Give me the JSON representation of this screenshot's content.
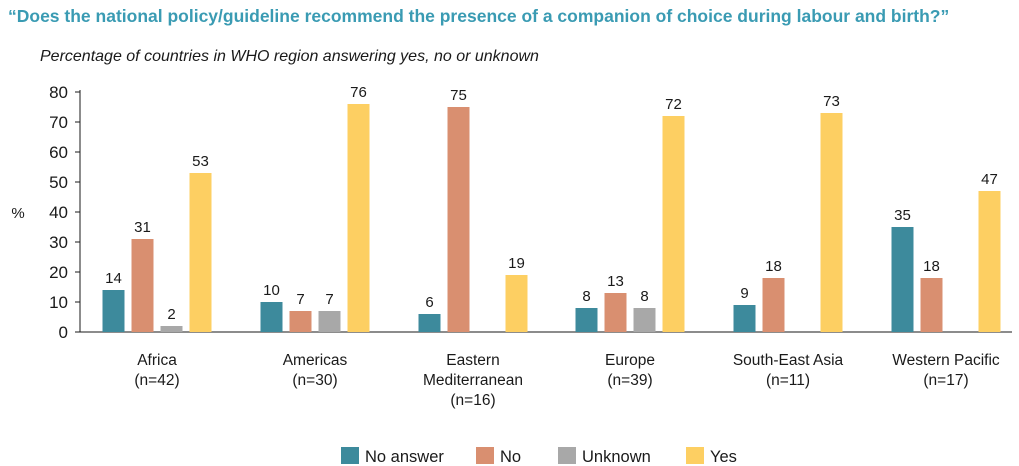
{
  "title": "“Does the national policy/guideline recommend the presence of a companion of choice during labour and birth?”",
  "subtitle": "Percentage of countries in WHO region answering yes, no or unknown",
  "chart_data": {
    "type": "bar",
    "ylabel": "%",
    "ylim": [
      0,
      80
    ],
    "yticks": [
      0,
      10,
      20,
      30,
      40,
      50,
      60,
      70,
      80
    ],
    "grid": false,
    "legend_position": "bottom",
    "categories": [
      [
        "Africa",
        "(n=42)"
      ],
      [
        "Americas",
        "(n=30)"
      ],
      [
        "Eastern",
        "Mediterranean",
        "(n=16)"
      ],
      [
        "Europe",
        "(n=39)"
      ],
      [
        "South-East Asia",
        "(n=11)"
      ],
      [
        "Western Pacific",
        "(n=17)"
      ]
    ],
    "series": [
      {
        "name": "No answer",
        "color": "#3d8a9c",
        "values": [
          14,
          10,
          6,
          8,
          9,
          35
        ]
      },
      {
        "name": "No",
        "color": "#d98f70",
        "values": [
          31,
          7,
          75,
          13,
          18,
          18
        ]
      },
      {
        "name": "Unknown",
        "color": "#a8a8a8",
        "values": [
          2,
          7,
          null,
          8,
          null,
          null
        ]
      },
      {
        "name": "Yes",
        "color": "#fdcf62",
        "values": [
          53,
          76,
          19,
          72,
          73,
          47
        ]
      }
    ]
  }
}
